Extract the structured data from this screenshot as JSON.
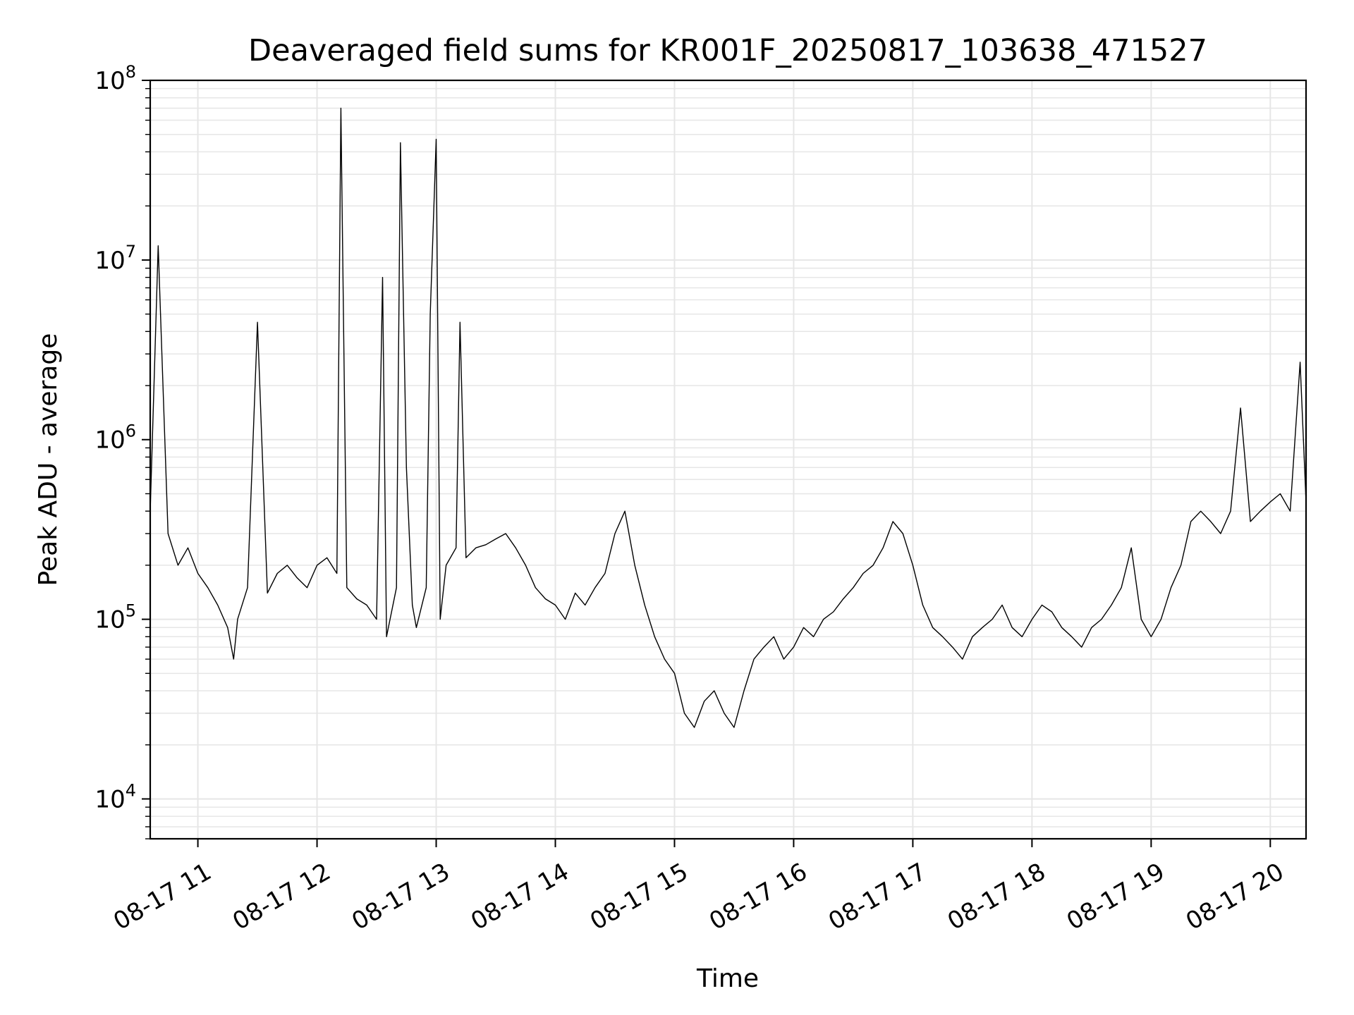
{
  "chart_data": {
    "type": "line",
    "title": "Deaveraged field sums for KR001F_20250817_103638_471527",
    "xlabel": "Time",
    "ylabel": "Peak ADU - average",
    "yscale": "log",
    "ylim": [
      6000,
      100000000
    ],
    "xlim": [
      "08-17 10:36",
      "08-17 20:18"
    ],
    "x_ticks": [
      "08-17 11",
      "08-17 12",
      "08-17 13",
      "08-17 14",
      "08-17 15",
      "08-17 16",
      "08-17 17",
      "08-17 18",
      "08-17 19",
      "08-17 20"
    ],
    "x_tick_times": [
      "08-17 11:00",
      "08-17 12:00",
      "08-17 13:00",
      "08-17 14:00",
      "08-17 15:00",
      "08-17 16:00",
      "08-17 17:00",
      "08-17 18:00",
      "08-17 19:00",
      "08-17 20:00"
    ],
    "y_ticks": [
      {
        "base": "10",
        "exp": "4",
        "value": 10000
      },
      {
        "base": "10",
        "exp": "5",
        "value": 100000
      },
      {
        "base": "10",
        "exp": "6",
        "value": 1000000
      },
      {
        "base": "10",
        "exp": "7",
        "value": 10000000
      },
      {
        "base": "10",
        "exp": "8",
        "value": 100000000
      }
    ],
    "grid": true,
    "series": [
      {
        "color": "#000000",
        "x": [
          "08-17 10:36",
          "08-17 10:40",
          "08-17 10:45",
          "08-17 10:50",
          "08-17 10:55",
          "08-17 11:00",
          "08-17 11:05",
          "08-17 11:10",
          "08-17 11:15",
          "08-17 11:18",
          "08-17 11:20",
          "08-17 11:25",
          "08-17 11:30",
          "08-17 11:35",
          "08-17 11:40",
          "08-17 11:45",
          "08-17 11:50",
          "08-17 11:55",
          "08-17 12:00",
          "08-17 12:05",
          "08-17 12:10",
          "08-17 12:12",
          "08-17 12:15",
          "08-17 12:20",
          "08-17 12:25",
          "08-17 12:30",
          "08-17 12:33",
          "08-17 12:35",
          "08-17 12:40",
          "08-17 12:42",
          "08-17 12:45",
          "08-17 12:48",
          "08-17 12:50",
          "08-17 12:55",
          "08-17 12:57",
          "08-17 13:00",
          "08-17 13:02",
          "08-17 13:05",
          "08-17 13:10",
          "08-17 13:12",
          "08-17 13:15",
          "08-17 13:20",
          "08-17 13:25",
          "08-17 13:30",
          "08-17 13:35",
          "08-17 13:40",
          "08-17 13:45",
          "08-17 13:50",
          "08-17 13:55",
          "08-17 14:00",
          "08-17 14:05",
          "08-17 14:10",
          "08-17 14:15",
          "08-17 14:20",
          "08-17 14:25",
          "08-17 14:30",
          "08-17 14:35",
          "08-17 14:40",
          "08-17 14:45",
          "08-17 14:50",
          "08-17 14:55",
          "08-17 15:00",
          "08-17 15:05",
          "08-17 15:10",
          "08-17 15:15",
          "08-17 15:20",
          "08-17 15:25",
          "08-17 15:30",
          "08-17 15:35",
          "08-17 15:40",
          "08-17 15:45",
          "08-17 15:50",
          "08-17 15:55",
          "08-17 16:00",
          "08-17 16:05",
          "08-17 16:10",
          "08-17 16:15",
          "08-17 16:20",
          "08-17 16:25",
          "08-17 16:30",
          "08-17 16:35",
          "08-17 16:40",
          "08-17 16:45",
          "08-17 16:50",
          "08-17 16:55",
          "08-17 17:00",
          "08-17 17:05",
          "08-17 17:10",
          "08-17 17:15",
          "08-17 17:20",
          "08-17 17:25",
          "08-17 17:30",
          "08-17 17:35",
          "08-17 17:40",
          "08-17 17:45",
          "08-17 17:50",
          "08-17 17:55",
          "08-17 18:00",
          "08-17 18:05",
          "08-17 18:10",
          "08-17 18:15",
          "08-17 18:20",
          "08-17 18:25",
          "08-17 18:30",
          "08-17 18:35",
          "08-17 18:40",
          "08-17 18:45",
          "08-17 18:50",
          "08-17 18:55",
          "08-17 19:00",
          "08-17 19:05",
          "08-17 19:10",
          "08-17 19:15",
          "08-17 19:20",
          "08-17 19:25",
          "08-17 19:30",
          "08-17 19:35",
          "08-17 19:40",
          "08-17 19:45",
          "08-17 19:50",
          "08-17 19:55",
          "08-17 20:00",
          "08-17 20:05",
          "08-17 20:10",
          "08-17 20:15",
          "08-17 20:18"
        ],
        "y": [
          400000,
          12000000,
          300000,
          200000,
          250000,
          180000,
          150000,
          120000,
          90000,
          60000,
          100000,
          150000,
          4500000,
          140000,
          180000,
          200000,
          170000,
          150000,
          200000,
          220000,
          180000,
          70000000,
          150000,
          130000,
          120000,
          100000,
          8000000,
          80000,
          150000,
          45000000,
          700000,
          120000,
          90000,
          150000,
          5000000,
          47000000,
          100000,
          200000,
          250000,
          4500000,
          220000,
          250000,
          260000,
          280000,
          300000,
          250000,
          200000,
          150000,
          130000,
          120000,
          100000,
          140000,
          120000,
          150000,
          180000,
          300000,
          400000,
          200000,
          120000,
          80000,
          60000,
          50000,
          30000,
          25000,
          35000,
          40000,
          30000,
          25000,
          40000,
          60000,
          70000,
          80000,
          60000,
          70000,
          90000,
          80000,
          100000,
          110000,
          130000,
          150000,
          180000,
          200000,
          250000,
          350000,
          300000,
          200000,
          120000,
          90000,
          80000,
          70000,
          60000,
          80000,
          90000,
          100000,
          120000,
          90000,
          80000,
          100000,
          120000,
          110000,
          90000,
          80000,
          70000,
          90000,
          100000,
          120000,
          150000,
          250000,
          100000,
          80000,
          100000,
          150000,
          200000,
          350000,
          400000,
          350000,
          300000,
          400000,
          1500000,
          350000,
          400000,
          450000,
          500000,
          400000,
          2700000,
          450000
        ]
      }
    ]
  }
}
